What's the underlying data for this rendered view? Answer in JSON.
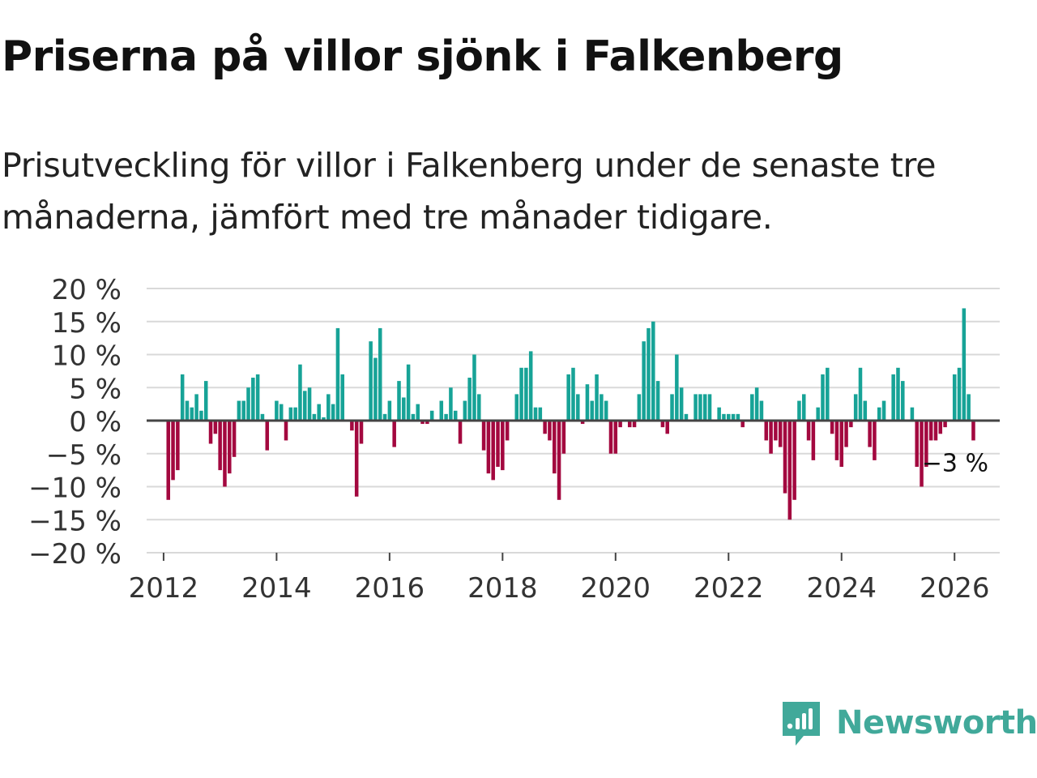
{
  "title": "Priserna på villor sjönk i Falkenberg",
  "subtitle": "Prisutveckling för villor i Falkenberg under de senaste tre månaderna, jämfört med tre månader tidigare.",
  "brand": "Newsworthy",
  "colors": {
    "positive": "#17a397",
    "negative": "#a3083f",
    "grid": "#d9d9d9",
    "zero": "#444444",
    "brand": "#41a99a"
  },
  "chart_data": {
    "type": "bar",
    "title": "Priserna på villor sjönk i Falkenberg",
    "xlabel": "",
    "ylabel": "",
    "ylim": [
      -20,
      20
    ],
    "yticks": [
      20,
      15,
      10,
      5,
      0,
      -5,
      -10,
      -15,
      -20
    ],
    "ytick_labels": [
      "20 %",
      "15 %",
      "10 %",
      "5 %",
      "0 %",
      "−5 %",
      "−10 %",
      "−15 %",
      "−20 %"
    ],
    "xlim": [
      2011.7,
      2026.8
    ],
    "xticks": [
      2012,
      2014,
      2016,
      2018,
      2020,
      2022,
      2024,
      2026
    ],
    "xtick_labels": [
      "2012",
      "2014",
      "2016",
      "2018",
      "2020",
      "2022",
      "2024",
      "2026"
    ],
    "start": 2012.0,
    "step_months": 1,
    "annotation": "−3 %",
    "values": [
      0,
      -12,
      -9,
      -7.5,
      7,
      3,
      2,
      4,
      1.5,
      6,
      -3.5,
      -2,
      -7.5,
      -10,
      -8,
      -5.5,
      3,
      3,
      5,
      6.5,
      7,
      1,
      -4.5,
      0,
      3,
      2.5,
      -3,
      2,
      2,
      8.5,
      4.5,
      5,
      1,
      2.5,
      0.5,
      4,
      2.5,
      14,
      7,
      0,
      -1.5,
      -11.5,
      -3.5,
      0,
      12,
      9.5,
      14,
      1,
      3,
      -4,
      6,
      3.5,
      8.5,
      1,
      2.5,
      -0.5,
      -0.5,
      1.5,
      0,
      3,
      1,
      5,
      1.5,
      -3.5,
      3,
      6.5,
      10,
      4,
      -4.5,
      -8,
      -9,
      -7,
      -7.5,
      -3,
      0,
      4,
      8,
      8,
      10.5,
      2,
      2,
      -2,
      -3,
      -8,
      -12,
      -5,
      7,
      8,
      4,
      -0.5,
      5.5,
      3,
      7,
      4,
      3,
      -5,
      -5,
      -1,
      0,
      -1,
      -1,
      4,
      12,
      14,
      15,
      6,
      -1,
      -2,
      4,
      10,
      5,
      1,
      0,
      4,
      4,
      4,
      4,
      0,
      2,
      1,
      1,
      1,
      1,
      -1,
      0,
      4,
      5,
      3,
      -3,
      -5,
      -3,
      -4,
      -11,
      -15,
      -12,
      3,
      4,
      -3,
      -6,
      2,
      7,
      8,
      -2,
      -6,
      -7,
      -4,
      -1,
      4,
      8,
      3,
      -4,
      -6,
      2,
      3,
      0,
      7,
      8,
      6,
      0,
      2,
      -7,
      -10,
      -7,
      -3,
      -3,
      -2,
      -1,
      0,
      7,
      8,
      17,
      4,
      -3
    ]
  }
}
